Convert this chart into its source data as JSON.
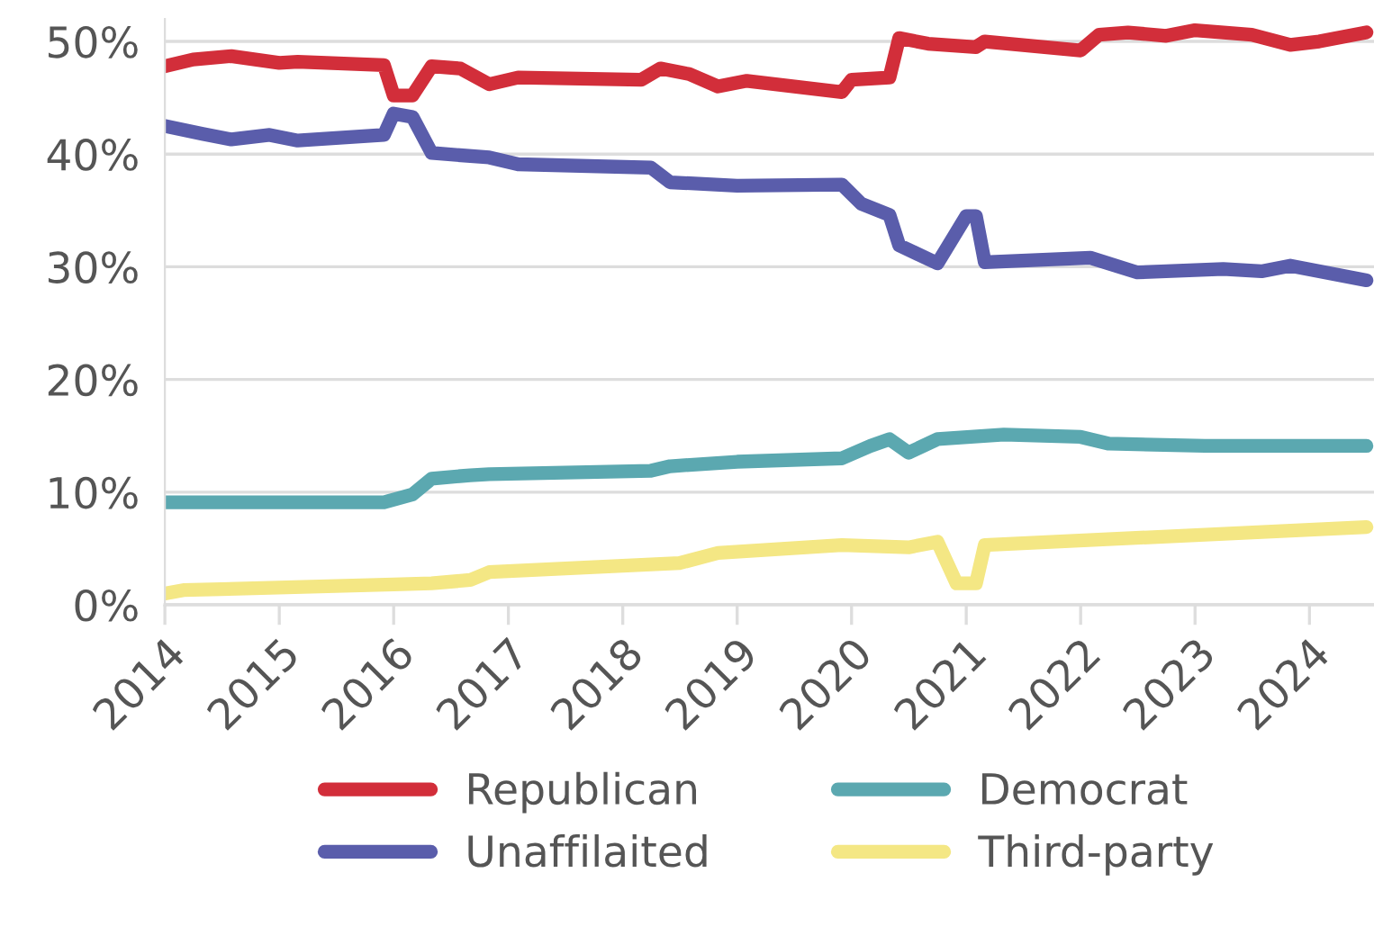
{
  "chart_data": {
    "type": "line",
    "xlim": [
      "2014-01-01",
      "2024-07-25"
    ],
    "xticks": [
      "2014",
      "2015",
      "2016",
      "2017",
      "2018",
      "2019",
      "2020",
      "2021",
      "2022",
      "2023",
      "2024"
    ],
    "ylim": [
      0,
      52
    ],
    "yticks": [
      {
        "value": 0,
        "label": "0%"
      },
      {
        "value": 10,
        "label": "10%"
      },
      {
        "value": 20,
        "label": "20%"
      },
      {
        "value": 30,
        "label": "30%"
      },
      {
        "value": 40,
        "label": "40%"
      },
      {
        "value": 50,
        "label": "50%"
      }
    ],
    "grid": "y",
    "legend": "bottom",
    "line_style": "solid",
    "marker": "none",
    "series": [
      {
        "name": "Republican",
        "color": "#d22e3a",
        "x": [
          "2014-01",
          "2014-04",
          "2014-08",
          "2015-01",
          "2015-03",
          "2015-12",
          "2016-01",
          "2016-03",
          "2016-05",
          "2016-08",
          "2016-11",
          "2017-02",
          "2018-03",
          "2018-05",
          "2018-08",
          "2018-11",
          "2019-02",
          "2019-12",
          "2020-01",
          "2020-05",
          "2020-06",
          "2020-09",
          "2021-02",
          "2021-03",
          "2022-01",
          "2022-03",
          "2022-06",
          "2022-10",
          "2023-01",
          "2023-07",
          "2023-11",
          "2024-02",
          "2024-07"
        ],
        "values": [
          47.8,
          48.4,
          48.7,
          48.1,
          48.2,
          47.9,
          45.2,
          45.2,
          47.8,
          47.6,
          46.2,
          46.8,
          46.6,
          47.6,
          47.1,
          46.0,
          46.5,
          45.5,
          46.6,
          46.8,
          50.3,
          49.8,
          49.5,
          50.0,
          49.2,
          50.6,
          50.8,
          50.5,
          51.0,
          50.6,
          49.7,
          50.0,
          50.8
        ]
      },
      {
        "name": "Democrat",
        "color": "#5ba8b0",
        "x": [
          "2014-01",
          "2015-12",
          "2016-03",
          "2016-05",
          "2016-09",
          "2016-11",
          "2018-04",
          "2018-06",
          "2019-01",
          "2019-12",
          "2020-03",
          "2020-05",
          "2020-07",
          "2020-10",
          "2021-05",
          "2022-01",
          "2022-04",
          "2023-02",
          "2023-10",
          "2024-07"
        ],
        "values": [
          9.1,
          9.1,
          9.8,
          11.2,
          11.5,
          11.6,
          11.9,
          12.3,
          12.7,
          13.0,
          14.1,
          14.7,
          13.5,
          14.7,
          15.1,
          14.9,
          14.3,
          14.1,
          14.1,
          14.1
        ]
      },
      {
        "name": "Unaffilaited",
        "color": "#5a5dab",
        "x": [
          "2014-01",
          "2014-05",
          "2014-08",
          "2014-12",
          "2015-03",
          "2015-12",
          "2016-01",
          "2016-03",
          "2016-05",
          "2016-11",
          "2017-02",
          "2018-04",
          "2018-06",
          "2019-01",
          "2019-12",
          "2020-02",
          "2020-05",
          "2020-06",
          "2020-10",
          "2021-01",
          "2021-02",
          "2021-03",
          "2022-02",
          "2022-07",
          "2023-04",
          "2023-08",
          "2023-11",
          "2024-07"
        ],
        "values": [
          42.5,
          41.8,
          41.3,
          41.7,
          41.2,
          41.7,
          43.6,
          43.3,
          40.1,
          39.7,
          39.1,
          38.8,
          37.5,
          37.2,
          37.3,
          35.6,
          34.6,
          31.9,
          30.3,
          34.5,
          34.5,
          30.4,
          30.8,
          29.5,
          29.8,
          29.6,
          30.1,
          28.8
        ]
      },
      {
        "name": "Third-party",
        "color": "#f4e784",
        "x": [
          "2014-01",
          "2014-03",
          "2016-01",
          "2016-05",
          "2016-09",
          "2016-11",
          "2018-07",
          "2018-11",
          "2019-12",
          "2020-07",
          "2020-10",
          "2020-12",
          "2021-02",
          "2021-03",
          "2024-07"
        ],
        "values": [
          1.0,
          1.3,
          1.8,
          1.9,
          2.2,
          2.9,
          3.7,
          4.6,
          5.3,
          5.1,
          5.6,
          1.9,
          1.9,
          5.3,
          6.9
        ]
      }
    ]
  }
}
